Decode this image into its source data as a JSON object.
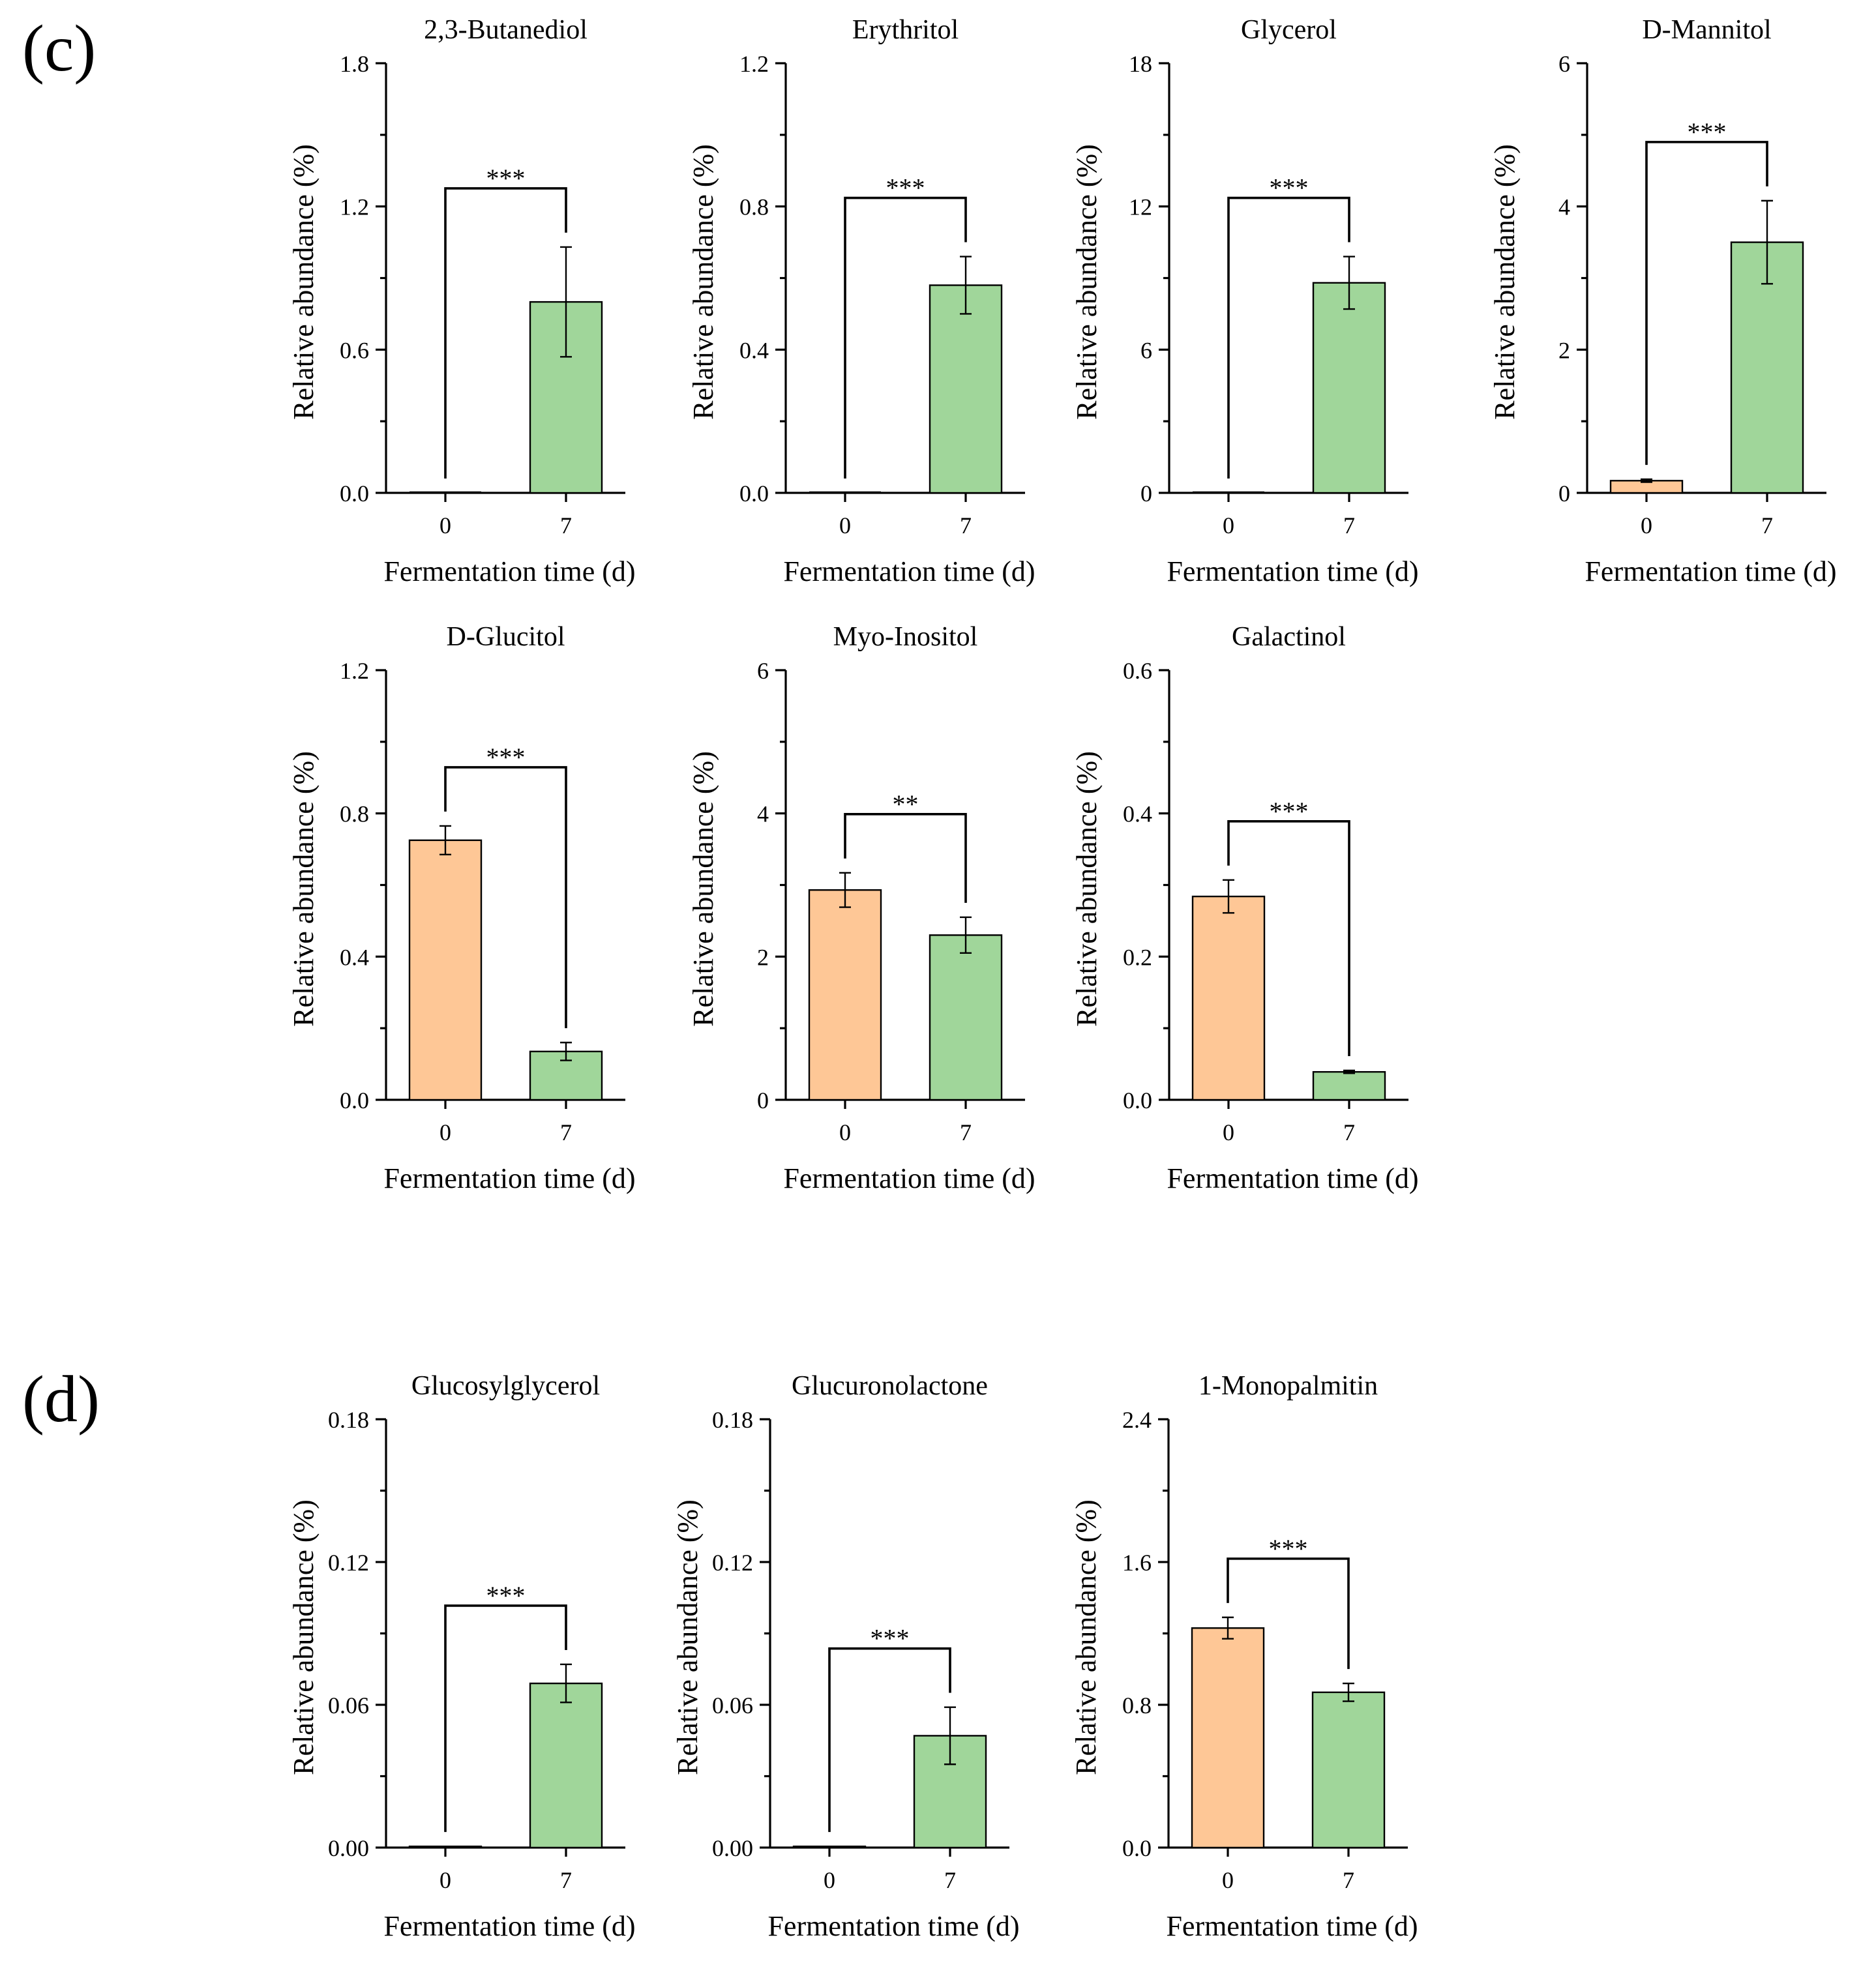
{
  "figure": {
    "panels": [
      {
        "label": "(c)"
      },
      {
        "label": "(d)"
      }
    ],
    "colors": {
      "day0_bar": "#FEC796",
      "day7_bar": "#A0D69A",
      "axis": "#000000"
    }
  },
  "chart_data": [
    {
      "type": "bar",
      "panel": "(c)",
      "title": "2,3-Butanediol",
      "xlabel": "Fermentation time (d)",
      "ylabel": "Relative abundance (%)",
      "categories": [
        "0",
        "7"
      ],
      "values": [
        0.0,
        0.8
      ],
      "errors": [
        0.0,
        0.23
      ],
      "ylim": [
        0,
        1.8
      ],
      "yticks": [
        0,
        0.6,
        1.2,
        1.8
      ],
      "ytick_labels": [
        "0.0",
        "0.6",
        "1.2",
        "1.8"
      ],
      "significance": "***"
    },
    {
      "type": "bar",
      "panel": "(c)",
      "title": "Erythritol",
      "xlabel": "Fermentation time (d)",
      "ylabel": "Relative abundance (%)",
      "categories": [
        "0",
        "7"
      ],
      "values": [
        0.0,
        0.58
      ],
      "errors": [
        0.0,
        0.08
      ],
      "ylim": [
        0,
        1.2
      ],
      "yticks": [
        0,
        0.4,
        0.8,
        1.2
      ],
      "ytick_labels": [
        "0.0",
        "0.4",
        "0.8",
        "1.2"
      ],
      "significance": "***"
    },
    {
      "type": "bar",
      "panel": "(c)",
      "title": "Glycerol",
      "xlabel": "Fermentation time (d)",
      "ylabel": "Relative abundance (%)",
      "categories": [
        "0",
        "7"
      ],
      "values": [
        0.0,
        8.8
      ],
      "errors": [
        0.0,
        1.1
      ],
      "ylim": [
        0,
        18
      ],
      "yticks": [
        0,
        6,
        12,
        18
      ],
      "ytick_labels": [
        "0",
        "6",
        "12",
        "18"
      ],
      "significance": "***"
    },
    {
      "type": "bar",
      "panel": "(c)",
      "title": "D-Mannitol",
      "xlabel": "Fermentation time (d)",
      "ylabel": "Relative abundance (%)",
      "categories": [
        "0",
        "7"
      ],
      "values": [
        0.17,
        3.5
      ],
      "errors": [
        0.02,
        0.58
      ],
      "ylim": [
        0,
        6
      ],
      "yticks": [
        0,
        2,
        4,
        6
      ],
      "ytick_labels": [
        "0",
        "2",
        "4",
        "6"
      ],
      "significance": "***"
    },
    {
      "type": "bar",
      "panel": "(c)",
      "title": "D-Glucitol",
      "xlabel": "Fermentation time (d)",
      "ylabel": "Relative abundance (%)",
      "categories": [
        "0",
        "7"
      ],
      "values": [
        0.725,
        0.135
      ],
      "errors": [
        0.04,
        0.025
      ],
      "ylim": [
        0,
        1.2
      ],
      "yticks": [
        0,
        0.4,
        0.8,
        1.2
      ],
      "ytick_labels": [
        "0.0",
        "0.4",
        "0.8",
        "1.2"
      ],
      "significance": "***"
    },
    {
      "type": "bar",
      "panel": "(c)",
      "title": "Myo-Inositol",
      "xlabel": "Fermentation time (d)",
      "ylabel": "Relative abundance (%)",
      "categories": [
        "0",
        "7"
      ],
      "values": [
        2.93,
        2.3
      ],
      "errors": [
        0.24,
        0.25
      ],
      "ylim": [
        0,
        6
      ],
      "yticks": [
        0,
        2,
        4,
        6
      ],
      "ytick_labels": [
        "0",
        "2",
        "4",
        "6"
      ],
      "significance": "**"
    },
    {
      "type": "bar",
      "panel": "(c)",
      "title": "Galactinol",
      "xlabel": "Fermentation time (d)",
      "ylabel": "Relative abundance (%)",
      "categories": [
        "0",
        "7"
      ],
      "values": [
        0.284,
        0.039
      ],
      "errors": [
        0.023,
        0.002
      ],
      "ylim": [
        0,
        0.6
      ],
      "yticks": [
        0,
        0.2,
        0.4,
        0.6
      ],
      "ytick_labels": [
        "0.0",
        "0.2",
        "0.4",
        "0.6"
      ],
      "significance": "***"
    },
    {
      "type": "bar",
      "panel": "(d)",
      "title": "Glucosylglycerol",
      "xlabel": "Fermentation time (d)",
      "ylabel": "Relative abundance (%)",
      "categories": [
        "0",
        "7"
      ],
      "values": [
        0.0005,
        0.069
      ],
      "errors": [
        0.0,
        0.008
      ],
      "ylim": [
        0,
        0.18
      ],
      "yticks": [
        0,
        0.06,
        0.12,
        0.18
      ],
      "ytick_labels": [
        "0.00",
        "0.06",
        "0.12",
        "0.18"
      ],
      "significance": "***"
    },
    {
      "type": "bar",
      "panel": "(d)",
      "title": "Glucuronolactone",
      "xlabel": "Fermentation time (d)",
      "ylabel": "Relative abundance (%)",
      "categories": [
        "0",
        "7"
      ],
      "values": [
        0.0005,
        0.047
      ],
      "errors": [
        0.0,
        0.012
      ],
      "ylim": [
        0,
        0.18
      ],
      "yticks": [
        0,
        0.06,
        0.12,
        0.18
      ],
      "ytick_labels": [
        "0.00",
        "0.06",
        "0.12",
        "0.18"
      ],
      "significance": "***"
    },
    {
      "type": "bar",
      "panel": "(d)",
      "title": "1-Monopalmitin",
      "xlabel": "Fermentation time (d)",
      "ylabel": "Relative abundance (%)",
      "categories": [
        "0",
        "7"
      ],
      "values": [
        1.23,
        0.87
      ],
      "errors": [
        0.06,
        0.05
      ],
      "ylim": [
        0,
        2.4
      ],
      "yticks": [
        0,
        0.8,
        1.6,
        2.4
      ],
      "ytick_labels": [
        "0.0",
        "0.8",
        "1.6",
        "2.4"
      ],
      "significance": "***"
    }
  ]
}
